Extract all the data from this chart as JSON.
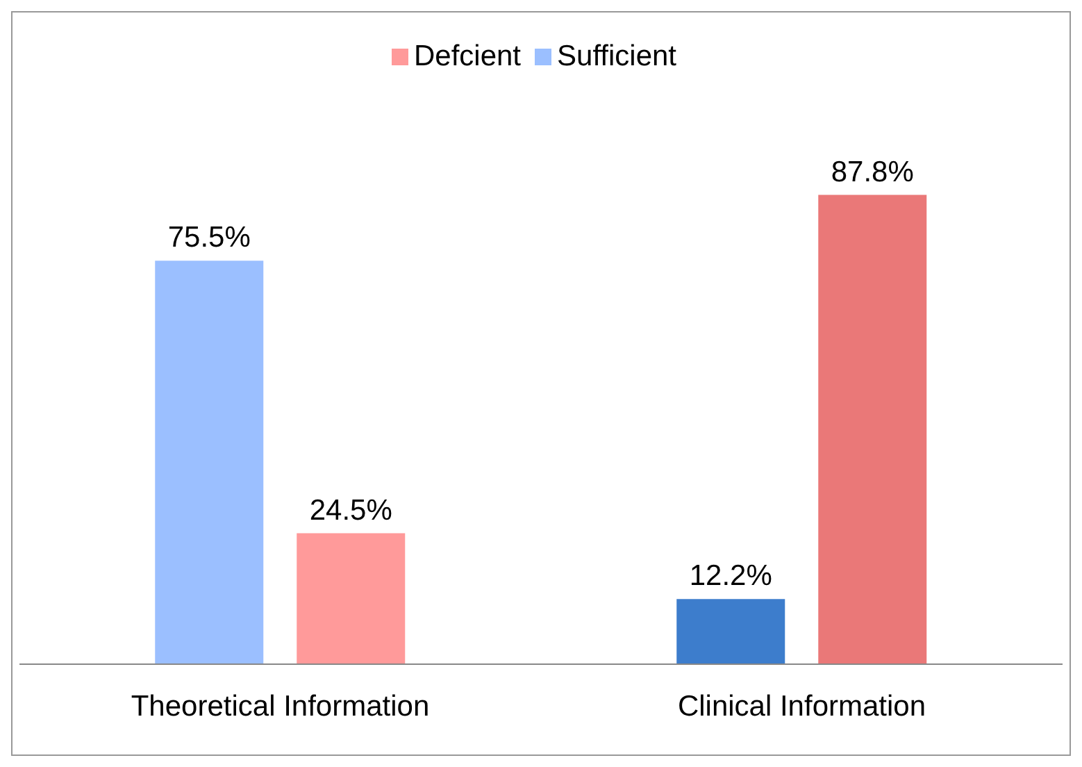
{
  "chart_data": {
    "type": "bar",
    "categories": [
      "Theoretical Information",
      "Clinical Information"
    ],
    "series": [
      {
        "name": "Sufficient",
        "color": "#9bbfff",
        "colors": [
          "#9bbfff",
          "#3d7dcc"
        ],
        "values": [
          75.5,
          12.2
        ],
        "value_labels": [
          "75.5%",
          "12.2%"
        ]
      },
      {
        "name": "Defcient",
        "color": "#ff9a9a",
        "colors": [
          "#ff9a9a",
          "#ea7878"
        ],
        "values": [
          24.5,
          87.8
        ],
        "value_labels": [
          "24.5%",
          "87.8%"
        ]
      }
    ],
    "legend": "top",
    "grid": false
  }
}
